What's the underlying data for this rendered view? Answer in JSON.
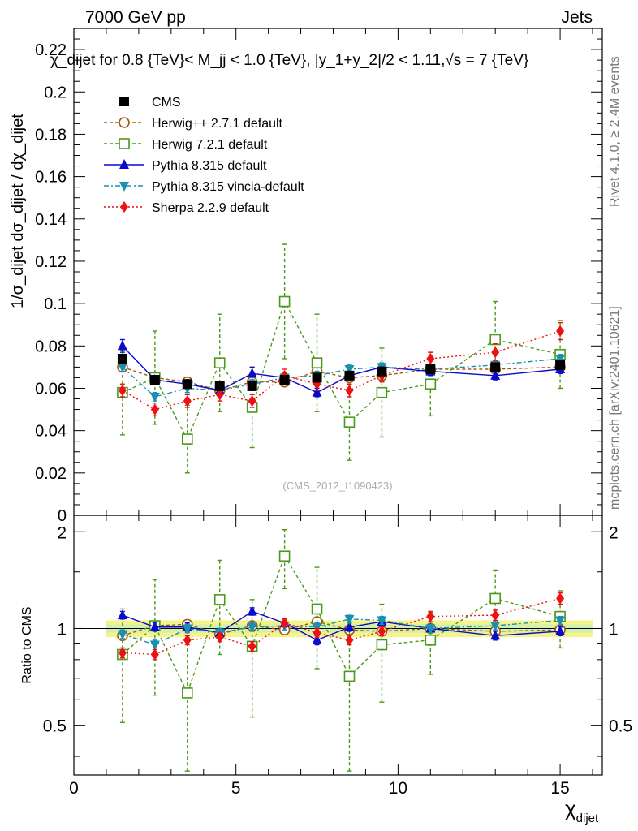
{
  "header": {
    "left": "7000 GeV pp",
    "right": "Jets",
    "title": "χ_dijet for 0.8 {TeV}< M_jj < 1.0 {TeV}, |y_1+y_2|/2 < 1.11,√s = 7 {TeV}"
  },
  "side": {
    "rivet": "Rivet 4.1.0, ≥ 2.4M events",
    "mcplots": "mcplots.cern.ch [arXiv:2401.10621]"
  },
  "watermark": "(CMS_2012_I1090423)",
  "chart_data": {
    "type": "scatter",
    "x": [
      1.5,
      2.5,
      3.5,
      4.5,
      5.5,
      6.5,
      7.5,
      8.5,
      9.5,
      11,
      13,
      15
    ],
    "xlabel_main": "χ",
    "xlabel_sub": "dijet",
    "ylabel_main": "1/σ_dijet dσ_dijet / dχ_dijet",
    "ratio_ylabel": "Ratio to CMS",
    "xlim": [
      0,
      16.3
    ],
    "ylim": [
      0,
      0.23
    ],
    "ratio_ylim": [
      0.35,
      2.25
    ],
    "xticks": [
      0,
      5,
      10,
      15
    ],
    "yticks": [
      0,
      0.02,
      0.04,
      0.06,
      0.08,
      0.1,
      0.12,
      0.14,
      0.16,
      0.18,
      0.2,
      0.22
    ],
    "ytick_labels": [
      "0",
      "0.02",
      "0.04",
      "0.06",
      "0.08",
      "0.1",
      "0.12",
      "0.14",
      "0.16",
      "0.18",
      "0.2",
      "0.22"
    ],
    "ratio_yticks": [
      0.5,
      1,
      2
    ],
    "ratio_ytick_labels": [
      "0.5",
      "1",
      "2"
    ],
    "ratio_band": {
      "inner": 0.03,
      "outer": 0.06
    },
    "series": [
      {
        "name": "CMS",
        "color": "#000000",
        "marker": "square-filled",
        "line": "none",
        "values": [
          0.074,
          0.064,
          0.062,
          0.061,
          0.061,
          0.064,
          0.065,
          0.066,
          0.068,
          0.069,
          0.07,
          0.071
        ],
        "errors": [
          0.002,
          0.002,
          0.002,
          0.002,
          0.002,
          0.002,
          0.002,
          0.002,
          0.002,
          0.002,
          0.002,
          0.002
        ],
        "ratio": [
          1,
          1,
          1,
          1,
          1,
          1,
          1,
          1,
          1,
          1,
          1,
          1
        ],
        "ratio_err": [
          0,
          0,
          0,
          0,
          0,
          0,
          0,
          0,
          0,
          0,
          0,
          0
        ]
      },
      {
        "name": "Herwig++ 2.7.1 default",
        "color": "#a05a10",
        "marker": "circle-open",
        "line": "4,3",
        "values": [
          0.07,
          0.065,
          0.063,
          0.059,
          0.063,
          0.063,
          0.068,
          0.065,
          0.066,
          0.069,
          0.069,
          0.07
        ],
        "errors": [
          0.002,
          0.002,
          0.002,
          0.002,
          0.002,
          0.002,
          0.002,
          0.002,
          0.002,
          0.002,
          0.002,
          0.002
        ],
        "ratio": [
          0.95,
          1.02,
          1.03,
          0.96,
          1.02,
          0.99,
          1.05,
          0.99,
          0.98,
          1.0,
          0.98,
          0.99
        ],
        "ratio_err": [
          0.03,
          0.03,
          0.03,
          0.03,
          0.03,
          0.03,
          0.03,
          0.03,
          0.03,
          0.03,
          0.03,
          0.03
        ]
      },
      {
        "name": "Herwig 7.2.1 default",
        "color": "#4a9a1a",
        "marker": "square-open",
        "line": "4,3",
        "values": [
          0.058,
          0.065,
          0.036,
          0.072,
          0.051,
          0.101,
          0.072,
          0.044,
          0.058,
          0.062,
          0.083,
          0.076
        ],
        "errors": [
          0.02,
          0.022,
          0.016,
          0.023,
          0.019,
          0.027,
          0.023,
          0.018,
          0.021,
          0.015,
          0.018,
          0.016
        ],
        "ratio": [
          0.83,
          1.02,
          0.63,
          1.23,
          0.88,
          1.68,
          1.15,
          0.71,
          0.89,
          0.92,
          1.24,
          1.09
        ],
        "ratio_err": [
          0.32,
          0.4,
          0.3,
          0.4,
          0.35,
          0.35,
          0.4,
          0.35,
          0.3,
          0.2,
          0.28,
          0.22
        ]
      },
      {
        "name": "Pythia 8.315 default",
        "color": "#0a0acc",
        "marker": "triangle-up",
        "line": "solid",
        "values": [
          0.08,
          0.064,
          0.062,
          0.059,
          0.067,
          0.065,
          0.058,
          0.066,
          0.07,
          0.068,
          0.066,
          0.069
        ],
        "errors": [
          0.003,
          0.002,
          0.002,
          0.002,
          0.003,
          0.002,
          0.002,
          0.002,
          0.002,
          0.002,
          0.002,
          0.002
        ],
        "ratio": [
          1.1,
          1.01,
          1.01,
          0.97,
          1.13,
          1.04,
          0.92,
          1.01,
          1.05,
          1.0,
          0.95,
          0.98
        ],
        "ratio_err": [
          0.03,
          0.03,
          0.03,
          0.03,
          0.03,
          0.03,
          0.03,
          0.03,
          0.03,
          0.03,
          0.03,
          0.03
        ]
      },
      {
        "name": "Pythia 8.315 vincia-default",
        "color": "#1a90b0",
        "marker": "triangle-down",
        "line": "6,3,2,3",
        "values": [
          0.07,
          0.056,
          0.06,
          0.059,
          0.062,
          0.065,
          0.066,
          0.069,
          0.07,
          0.069,
          0.071,
          0.074
        ],
        "errors": [
          0.002,
          0.002,
          0.002,
          0.002,
          0.002,
          0.002,
          0.002,
          0.002,
          0.002,
          0.002,
          0.002,
          0.002
        ],
        "ratio": [
          0.96,
          0.89,
          1.0,
          0.97,
          1.01,
          1.02,
          1.01,
          1.07,
          1.06,
          1.0,
          1.02,
          1.06
        ],
        "ratio_err": [
          0.03,
          0.03,
          0.03,
          0.03,
          0.03,
          0.03,
          0.03,
          0.03,
          0.03,
          0.03,
          0.03,
          0.03
        ]
      },
      {
        "name": "Sherpa 2.2.9 default",
        "color": "#ee1111",
        "marker": "diamond",
        "line": "2,3",
        "values": [
          0.059,
          0.05,
          0.054,
          0.057,
          0.054,
          0.066,
          0.062,
          0.059,
          0.066,
          0.074,
          0.077,
          0.087
        ],
        "errors": [
          0.003,
          0.003,
          0.003,
          0.003,
          0.003,
          0.003,
          0.003,
          0.003,
          0.003,
          0.003,
          0.004,
          0.004
        ],
        "ratio": [
          0.84,
          0.83,
          0.92,
          0.94,
          0.88,
          1.04,
          0.97,
          0.92,
          0.98,
          1.09,
          1.1,
          1.24
        ],
        "ratio_err": [
          0.03,
          0.03,
          0.03,
          0.03,
          0.03,
          0.03,
          0.03,
          0.03,
          0.03,
          0.04,
          0.04,
          0.05
        ]
      }
    ]
  }
}
